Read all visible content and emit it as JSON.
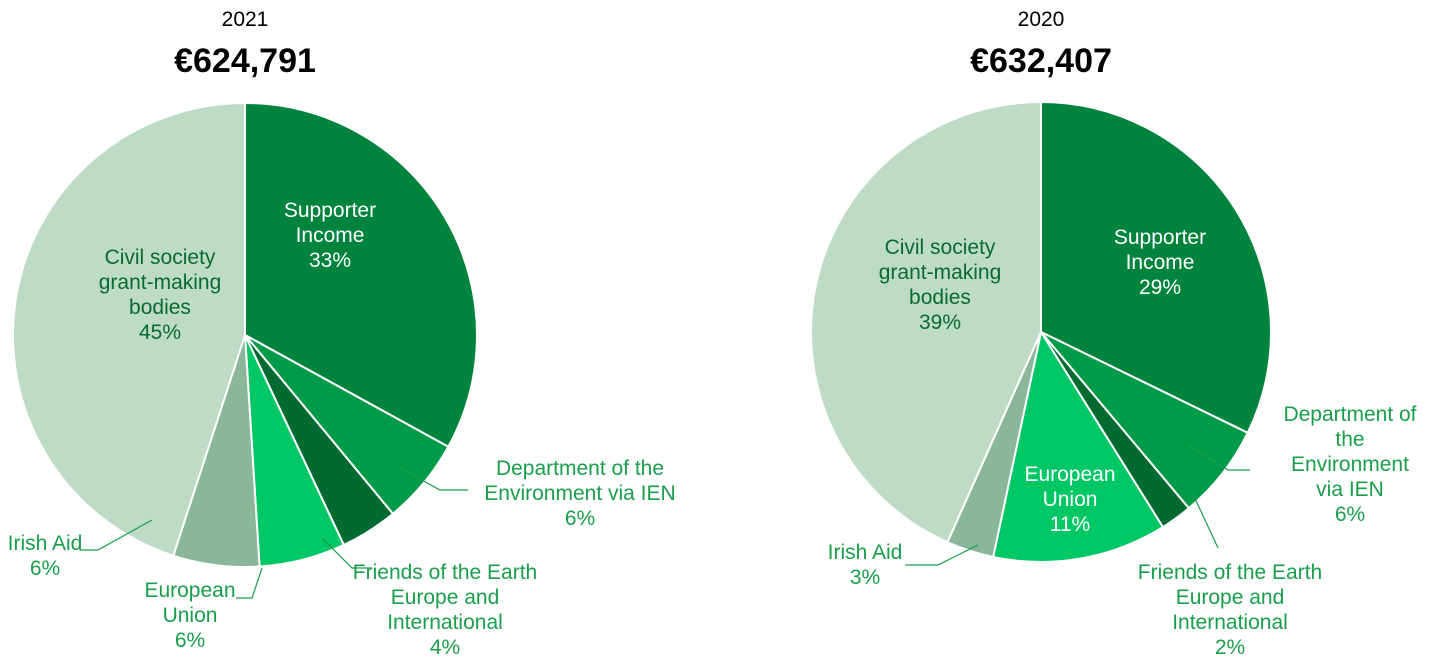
{
  "chart_data": [
    {
      "type": "pie",
      "subtitle": "2021",
      "title": "€624,791",
      "categories": [
        "Supporter Income",
        "Department of the Environment via IEN",
        "Friends of the Earth Europe and International",
        "European Union",
        "Irish Aid",
        "Civil society grant-making bodies"
      ],
      "values": [
        33,
        6,
        4,
        6,
        6,
        45
      ],
      "value_labels": [
        "33%",
        "6%",
        "4%",
        "6%",
        "6%",
        "45%"
      ],
      "colors": [
        "#00843d",
        "#009b48",
        "#006a30",
        "#00c765",
        "#8ab699",
        "#bddbc5"
      ]
    },
    {
      "type": "pie",
      "subtitle": "2020",
      "title": "€632,407",
      "categories": [
        "Supporter Income",
        "Department of the Environment via IEN",
        "Friends of the Earth Europe and International",
        "European Union",
        "Irish Aid",
        "Civil society grant-making bodies"
      ],
      "values": [
        29,
        6,
        2,
        11,
        3,
        39
      ],
      "value_labels": [
        "29%",
        "6%",
        "2%",
        "11%",
        "3%",
        "39%"
      ],
      "colors": [
        "#00843d",
        "#009b48",
        "#006a30",
        "#00c765",
        "#8ab699",
        "#bddbc5"
      ]
    }
  ]
}
